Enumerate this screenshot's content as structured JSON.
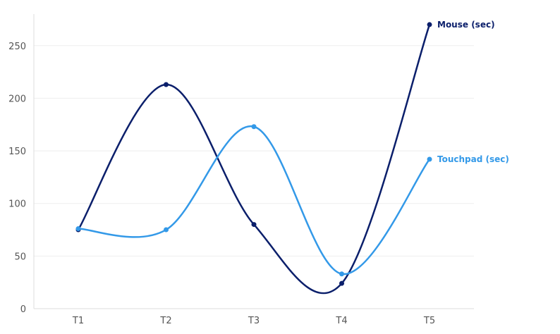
{
  "chart_data": {
    "type": "line",
    "categories": [
      "T1",
      "T2",
      "T3",
      "T4",
      "T5"
    ],
    "series": [
      {
        "name": "Mouse (sec)",
        "values": [
          75,
          213,
          80,
          24,
          270
        ],
        "color": "#0b1f6b"
      },
      {
        "name": "Touchpad (sec)",
        "values": [
          76,
          75,
          173,
          33,
          142
        ],
        "color": "#3399e8"
      }
    ],
    "y_ticks": [
      0,
      50,
      100,
      150,
      200,
      250
    ],
    "ylim": [
      0,
      280
    ],
    "grid": true,
    "curve": "smooth",
    "legend": "inline at series end",
    "axis_color": "#dddddd",
    "grid_color": "#eeeeee"
  }
}
